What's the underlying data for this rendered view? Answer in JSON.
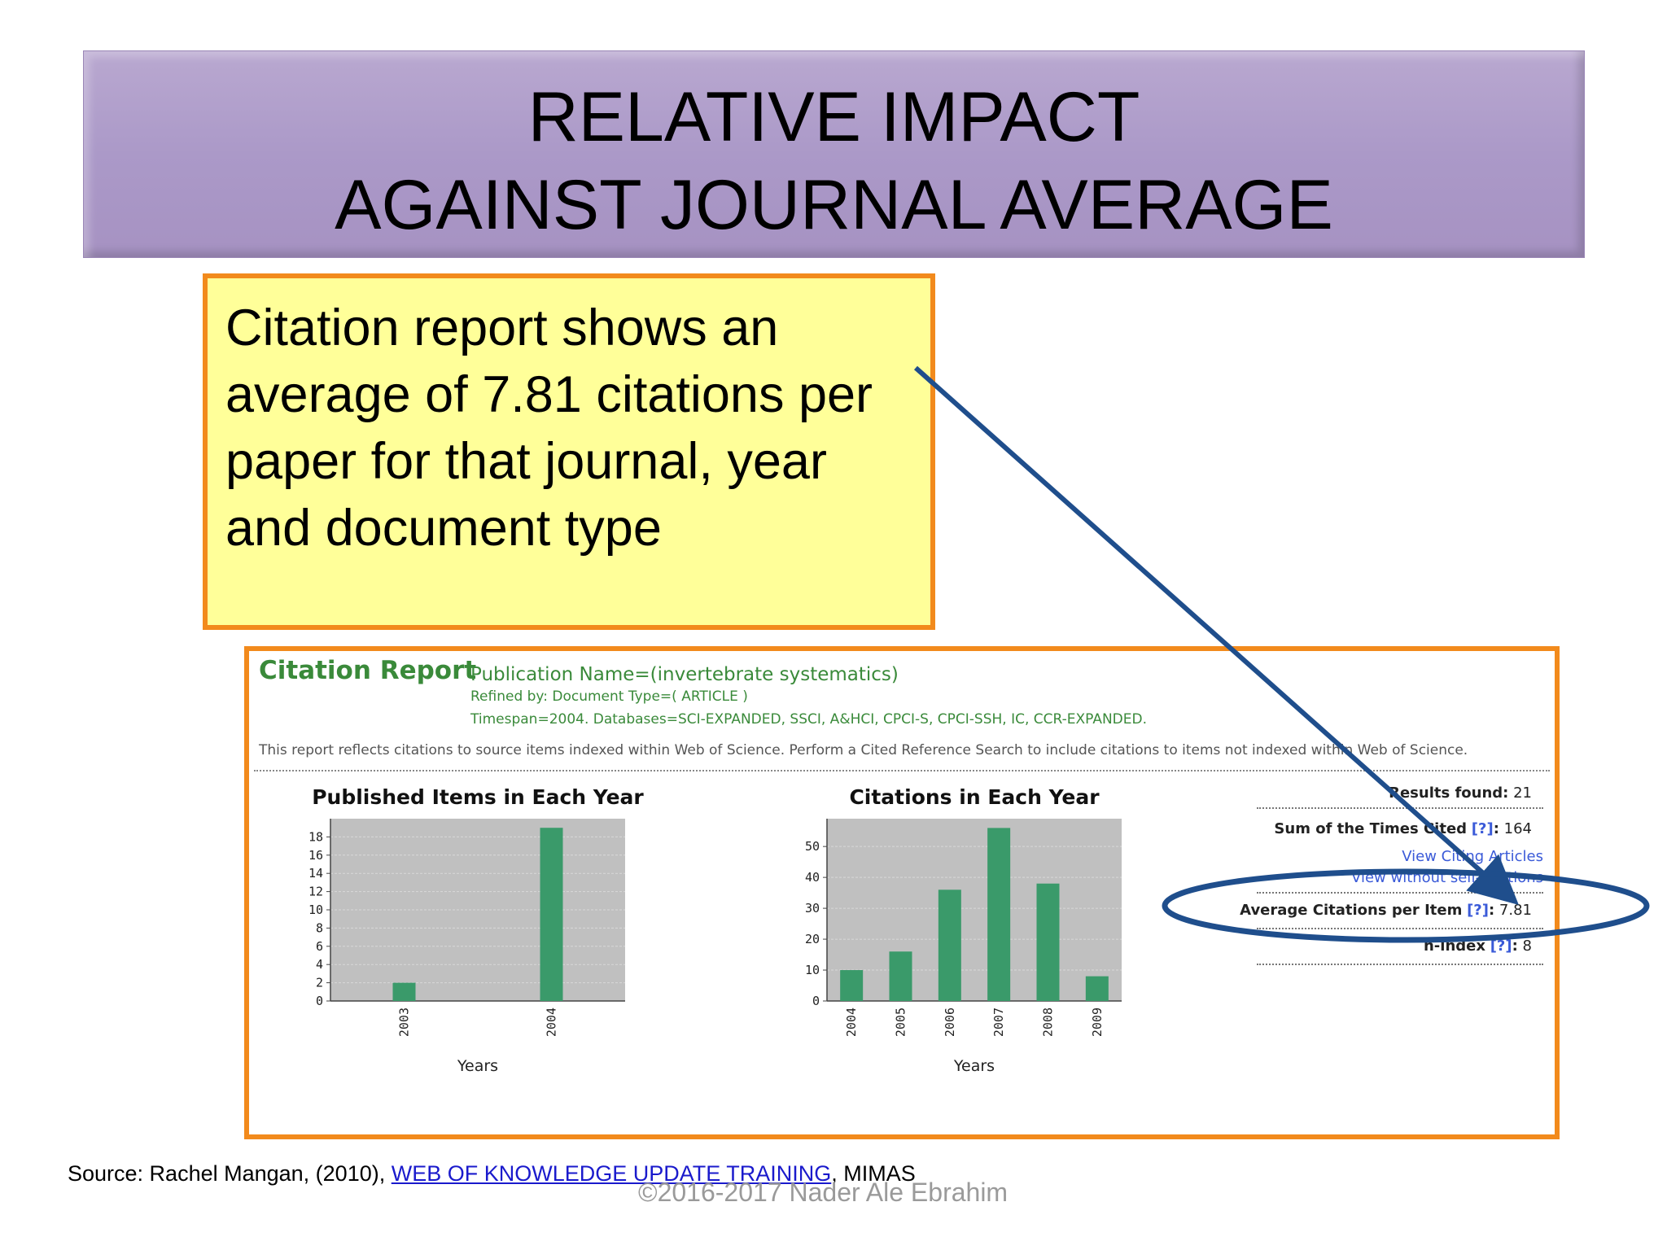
{
  "slide": {
    "title_line1": "RELATIVE IMPACT",
    "title_line2": "AGAINST JOURNAL AVERAGE",
    "callout_text": "Citation report shows an average of 7.81 citations per paper for that journal, year and document type",
    "source_prefix": "Source: Rachel  Mangan, (2010), ",
    "source_link": "WEB OF KNOWLEDGE UPDATE TRAINING",
    "source_suffix": ", MIMAS",
    "copyright": "©2016-2017  Nader Ale Ebrahim"
  },
  "report": {
    "title": "Citation Report",
    "publication": "Publication Name=(invertebrate systematics)",
    "refined": "Refined by: Document Type=( ARTICLE )",
    "timespan": "Timespan=2004. Databases=SCI-EXPANDED, SSCI, A&HCI, CPCI-S, CPCI-SSH, IC, CCR-EXPANDED.",
    "note": "This report reflects citations to source items indexed within Web of Science. Perform a Cited Reference Search to include citations to items not indexed within Web of Science.",
    "results_label": "Results found:",
    "results_value": "21",
    "sum_label": "Sum of the Times Cited",
    "sum_value": "164",
    "help": "[?]",
    "link_citing": "View Citing Articles",
    "link_without": "View without self-citations",
    "avg_label": "Average Citations per Item",
    "avg_value": "7.81",
    "hindex_label": "h-index",
    "hindex_value": "8"
  },
  "chart_data": [
    {
      "type": "bar",
      "title": "Published Items in Each Year",
      "xlabel": "Years",
      "ylabel": "",
      "categories": [
        "2003",
        "2004"
      ],
      "values": [
        2,
        19
      ],
      "ylim": [
        0,
        20
      ],
      "yticks": [
        0,
        2,
        4,
        6,
        8,
        10,
        12,
        14,
        16,
        18
      ],
      "bar_color": "#3a9a6a",
      "grid": true
    },
    {
      "type": "bar",
      "title": "Citations in Each Year",
      "xlabel": "Years",
      "ylabel": "",
      "categories": [
        "2004",
        "2005",
        "2006",
        "2007",
        "2008",
        "2009"
      ],
      "values": [
        10,
        16,
        36,
        56,
        38,
        8
      ],
      "ylim": [
        0,
        59
      ],
      "yticks": [
        0,
        10,
        20,
        30,
        40,
        50
      ],
      "bar_color": "#3a9a6a",
      "grid": true
    }
  ],
  "colors": {
    "banner": "#ab99c8",
    "callout_fill": "#ffff99",
    "frame_orange": "#f28a1c",
    "arrow_blue": "#1f4e8c",
    "report_green": "#3a8a3a"
  }
}
